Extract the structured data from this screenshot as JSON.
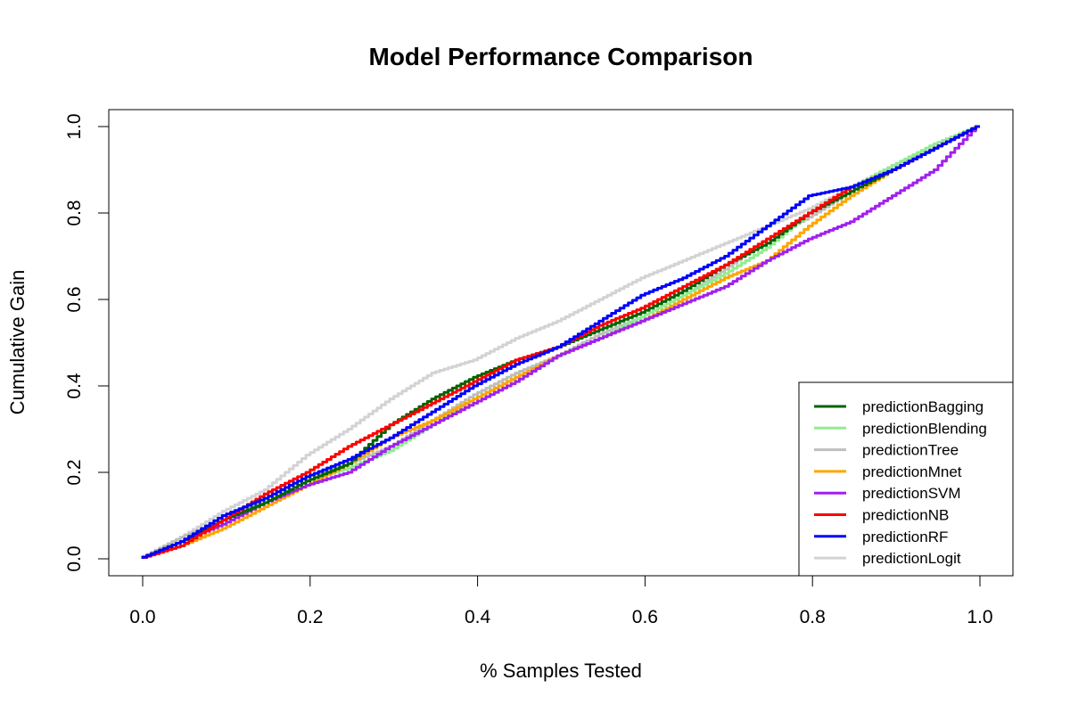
{
  "chart_data": {
    "type": "line",
    "title": "Model Performance Comparison",
    "xlabel": "% Samples Tested",
    "ylabel": "Cumulative Gain",
    "xlim": [
      0.0,
      1.0
    ],
    "ylim": [
      0.0,
      1.0
    ],
    "x_ticks": [
      "0.0",
      "0.2",
      "0.4",
      "0.6",
      "0.8",
      "1.0"
    ],
    "y_ticks": [
      "0.0",
      "0.2",
      "0.4",
      "0.6",
      "0.8",
      "1.0"
    ],
    "grid": false,
    "legend_position": "bottom-right",
    "x": [
      0.0,
      0.05,
      0.1,
      0.15,
      0.2,
      0.25,
      0.3,
      0.35,
      0.4,
      0.45,
      0.5,
      0.55,
      0.6,
      0.65,
      0.7,
      0.75,
      0.8,
      0.85,
      0.9,
      0.95,
      1.0
    ],
    "series": [
      {
        "name": "predictionBagging",
        "color": "#006400",
        "values": [
          0.0,
          0.04,
          0.09,
          0.13,
          0.18,
          0.22,
          0.31,
          0.37,
          0.42,
          0.46,
          0.49,
          0.53,
          0.57,
          0.62,
          0.68,
          0.73,
          0.8,
          0.85,
          0.9,
          0.95,
          1.0
        ]
      },
      {
        "name": "predictionBlending",
        "color": "#90EE90",
        "values": [
          0.0,
          0.04,
          0.08,
          0.13,
          0.18,
          0.21,
          0.25,
          0.31,
          0.37,
          0.42,
          0.47,
          0.51,
          0.56,
          0.61,
          0.66,
          0.72,
          0.8,
          0.86,
          0.91,
          0.96,
          1.0
        ]
      },
      {
        "name": "predictionTree",
        "color": "#BEBEBE",
        "values": [
          0.0,
          0.05,
          0.09,
          0.14,
          0.19,
          0.22,
          0.26,
          0.32,
          0.38,
          0.43,
          0.47,
          0.52,
          0.56,
          0.61,
          0.67,
          0.74,
          0.79,
          0.85,
          0.91,
          0.95,
          1.0
        ]
      },
      {
        "name": "predictionMnet",
        "color": "#FFA500",
        "values": [
          0.0,
          0.03,
          0.07,
          0.12,
          0.17,
          0.22,
          0.28,
          0.32,
          0.37,
          0.42,
          0.47,
          0.51,
          0.55,
          0.6,
          0.65,
          0.69,
          0.77,
          0.84,
          0.9,
          0.95,
          1.0
        ]
      },
      {
        "name": "predictionSVM",
        "color": "#A020F0",
        "values": [
          0.0,
          0.04,
          0.08,
          0.13,
          0.17,
          0.2,
          0.26,
          0.31,
          0.36,
          0.41,
          0.47,
          0.51,
          0.55,
          0.59,
          0.63,
          0.69,
          0.74,
          0.78,
          0.84,
          0.9,
          1.0
        ]
      },
      {
        "name": "predictionNB",
        "color": "#FF0000",
        "values": [
          0.0,
          0.03,
          0.09,
          0.15,
          0.2,
          0.26,
          0.31,
          0.36,
          0.41,
          0.46,
          0.49,
          0.54,
          0.58,
          0.63,
          0.68,
          0.74,
          0.8,
          0.86,
          0.9,
          0.95,
          1.0
        ]
      },
      {
        "name": "predictionRF",
        "color": "#0000FF",
        "values": [
          0.0,
          0.04,
          0.1,
          0.14,
          0.19,
          0.23,
          0.28,
          0.34,
          0.4,
          0.45,
          0.49,
          0.55,
          0.61,
          0.65,
          0.7,
          0.77,
          0.84,
          0.86,
          0.9,
          0.95,
          1.0
        ]
      },
      {
        "name": "predictionLogit",
        "color": "#D3D3D3",
        "values": [
          0.0,
          0.05,
          0.11,
          0.16,
          0.24,
          0.3,
          0.37,
          0.43,
          0.46,
          0.51,
          0.55,
          0.6,
          0.65,
          0.69,
          0.73,
          0.77,
          0.81,
          0.86,
          0.91,
          0.96,
          1.0
        ]
      }
    ]
  }
}
